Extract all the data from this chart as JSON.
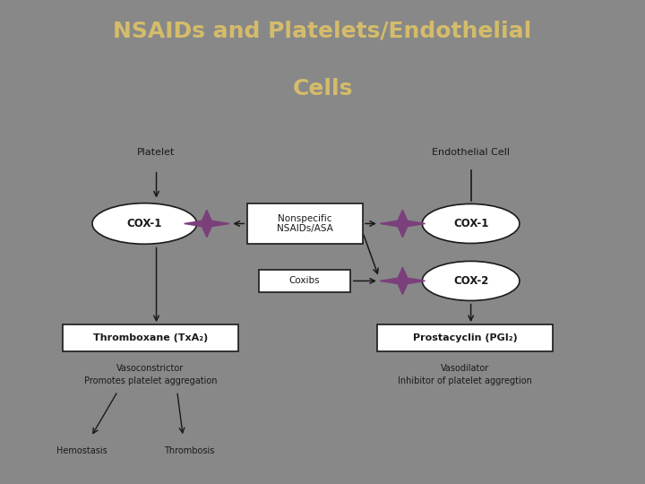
{
  "title_line1": "NSAIDs and Platelets/Endothelial",
  "title_line2": "Cells",
  "title_color": "#d4bc6a",
  "bg_color_top": "#909090",
  "bg_color": "#888888",
  "purple_color": "#7b3f7b",
  "black": "#1a1a1a",
  "labels": {
    "platelet": "Platelet",
    "endo_cell": "Endothelial Cell",
    "cox1": "COX-1",
    "cox2": "COX-2",
    "nsaid": "Nonspecific\nNSAIDs/ASA",
    "coxib": "Coxibs",
    "thromboxane": "Thromboxane (TxA₂)",
    "prostacyclin": "Prostacyclin (PGI₂)",
    "vasoconstrictor": "Vasoconstrictor",
    "promotes": "Promotes platelet aggregation",
    "vasodilator": "Vasodilator",
    "inhibitor": "Inhibitor of platelet aggregtion",
    "hemostasis": "Hemostasis",
    "thrombosis": "Thrombosis"
  }
}
